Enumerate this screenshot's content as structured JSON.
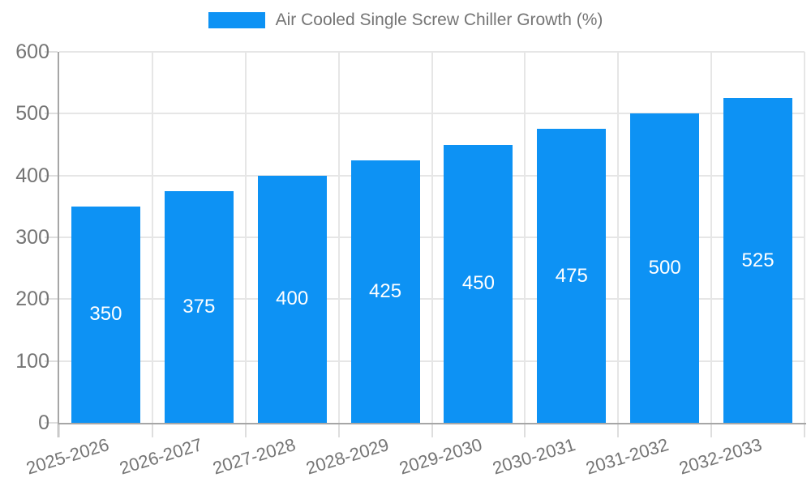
{
  "legend": {
    "label": "Air Cooled Single Screw Chiller Growth (%)"
  },
  "colors": {
    "bar": "#0d92f4",
    "axis": "#a6a6a6",
    "gridline": "#e6e6e6",
    "tick": "#dedede",
    "text": "#757575",
    "value_label": "#ffffff",
    "background": "#ffffff"
  },
  "chart_data": {
    "type": "bar",
    "title": "Air Cooled Single Screw Chiller Growth (%)",
    "categories": [
      "2025-2026",
      "2026-2027",
      "2027-2028",
      "2028-2029",
      "2029-2030",
      "2030-2031",
      "2031-2032",
      "2032-2033"
    ],
    "values": [
      350,
      375,
      400,
      425,
      450,
      475,
      500,
      525
    ],
    "xlabel": "",
    "ylabel": "",
    "ylim": [
      0,
      600
    ],
    "yticks": [
      0,
      100,
      200,
      300,
      400,
      500,
      600
    ],
    "grid": true,
    "legend_position": "top-center",
    "value_labels": "inside-center",
    "x_label_rotation_deg": -17
  }
}
